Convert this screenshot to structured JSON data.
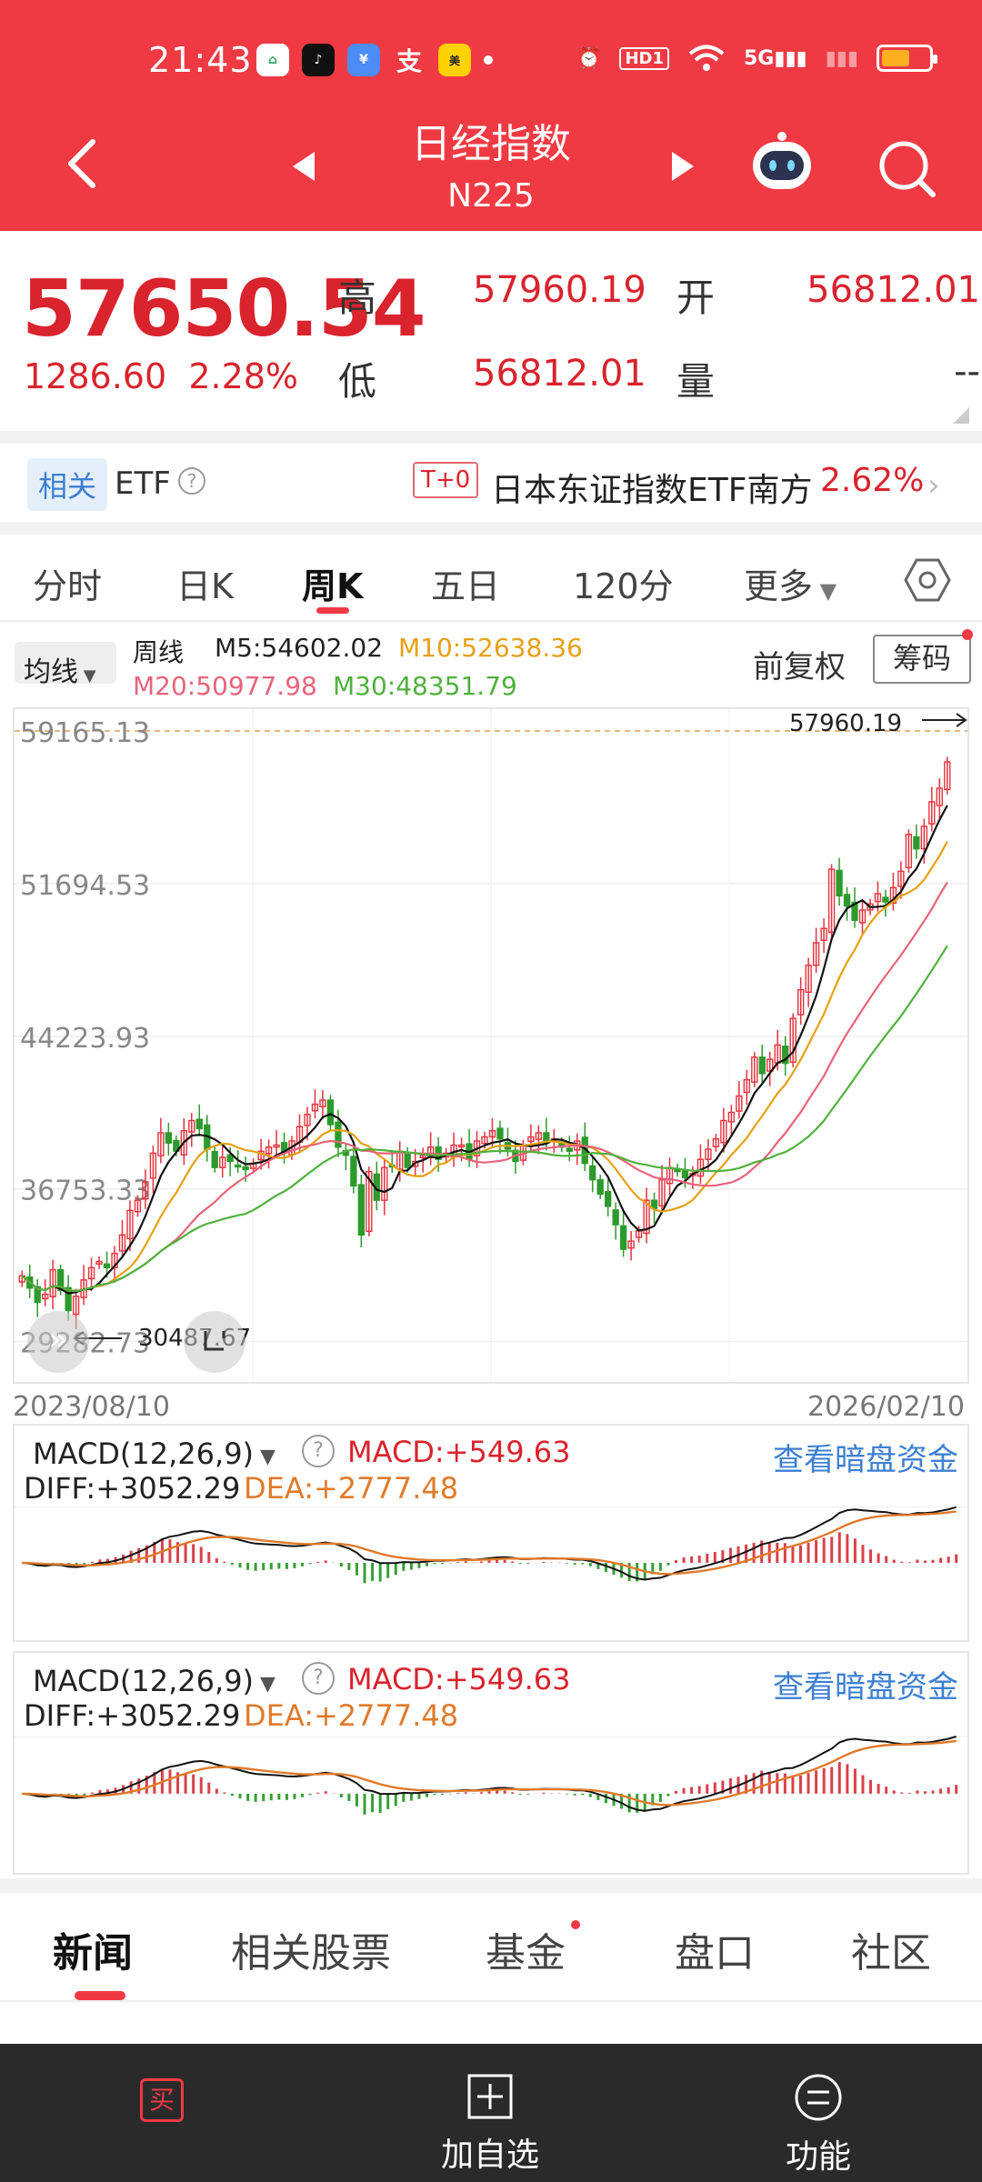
{
  "status": {
    "time": "21:43",
    "network": "HD1",
    "signal_label": "5G"
  },
  "nav": {
    "title": "日经指数",
    "subtitle": "N225"
  },
  "quote": {
    "price": "57650.54",
    "change": "1286.60",
    "change_pct": "2.28%",
    "high_label": "高",
    "high": "57960.19",
    "open_label": "开",
    "open": "56812.01",
    "low_label": "低",
    "low": "56812.01",
    "volume_label": "量",
    "volume": "--"
  },
  "etf": {
    "tag": "相关",
    "label": "ETF",
    "t0": "T+0",
    "name": "日本东证指数ETF南方",
    "pct": "2.62%"
  },
  "tabs": [
    "分时",
    "日K",
    "周K",
    "五日",
    "120分",
    "更多"
  ],
  "ma": {
    "selector": "均线",
    "period": "周线",
    "m5": "M5:54602.02",
    "m10": "M10:52638.36",
    "m20": "M20:50977.98",
    "m30": "M30:48351.79",
    "adjust": "前复权",
    "chip": "筹码"
  },
  "chart_data": {
    "type": "candlestick",
    "y_ticks": [
      "59165.13",
      "51694.53",
      "44223.93",
      "36753.33",
      "29282.73"
    ],
    "high_marker": "57960.19",
    "low_marker": "30487.67",
    "x_start": "2023/08/10",
    "x_end": "2026/02/10",
    "close_series": [
      32500,
      31900,
      31200,
      31600,
      32800,
      31800,
      30800,
      31500,
      32300,
      32900,
      33200,
      32900,
      33600,
      34500,
      35700,
      36200,
      37100,
      38500,
      39500,
      39000,
      38600,
      39600,
      40100,
      39700,
      38700,
      37800,
      38300,
      38100,
      37900,
      37700,
      38000,
      38600,
      38800,
      38900,
      38600,
      39100,
      39800,
      40400,
      40900,
      41100,
      39900,
      38800,
      38400,
      36900,
      34500,
      37600,
      36200,
      37800,
      37900,
      38600,
      37800,
      38100,
      38400,
      38800,
      38200,
      38500,
      38900,
      38900,
      38200,
      39100,
      39300,
      39600,
      39200,
      38700,
      38100,
      38900,
      39300,
      39500,
      39000,
      39200,
      38800,
      38600,
      39100,
      38000,
      37200,
      36500,
      35900,
      35000,
      33800,
      34200,
      34700,
      36200,
      35800,
      37200,
      37800,
      37600,
      37300,
      37500,
      38200,
      38700,
      39200,
      40100,
      40500,
      41300,
      42100,
      43200,
      42400,
      43100,
      43800,
      42900,
      45100,
      46500,
      47700,
      48800,
      49500,
      52400,
      51100,
      50600,
      49900,
      50400,
      50700,
      51200,
      50800,
      51500,
      52300,
      54100,
      53400,
      54500,
      55700,
      56364,
      57650.54
    ]
  },
  "macd": {
    "title": "MACD(12,26,9)",
    "macd": "MACD:+549.63",
    "diff": "DIFF:+3052.29",
    "dea": "DEA:+2777.48",
    "link": "查看暗盘资金"
  },
  "bottom_tabs": [
    "新闻",
    "相关股票",
    "基金",
    "盘口",
    "社区"
  ],
  "bottom_bar": {
    "add": "加自选",
    "func": "功能",
    "buy": "买"
  }
}
